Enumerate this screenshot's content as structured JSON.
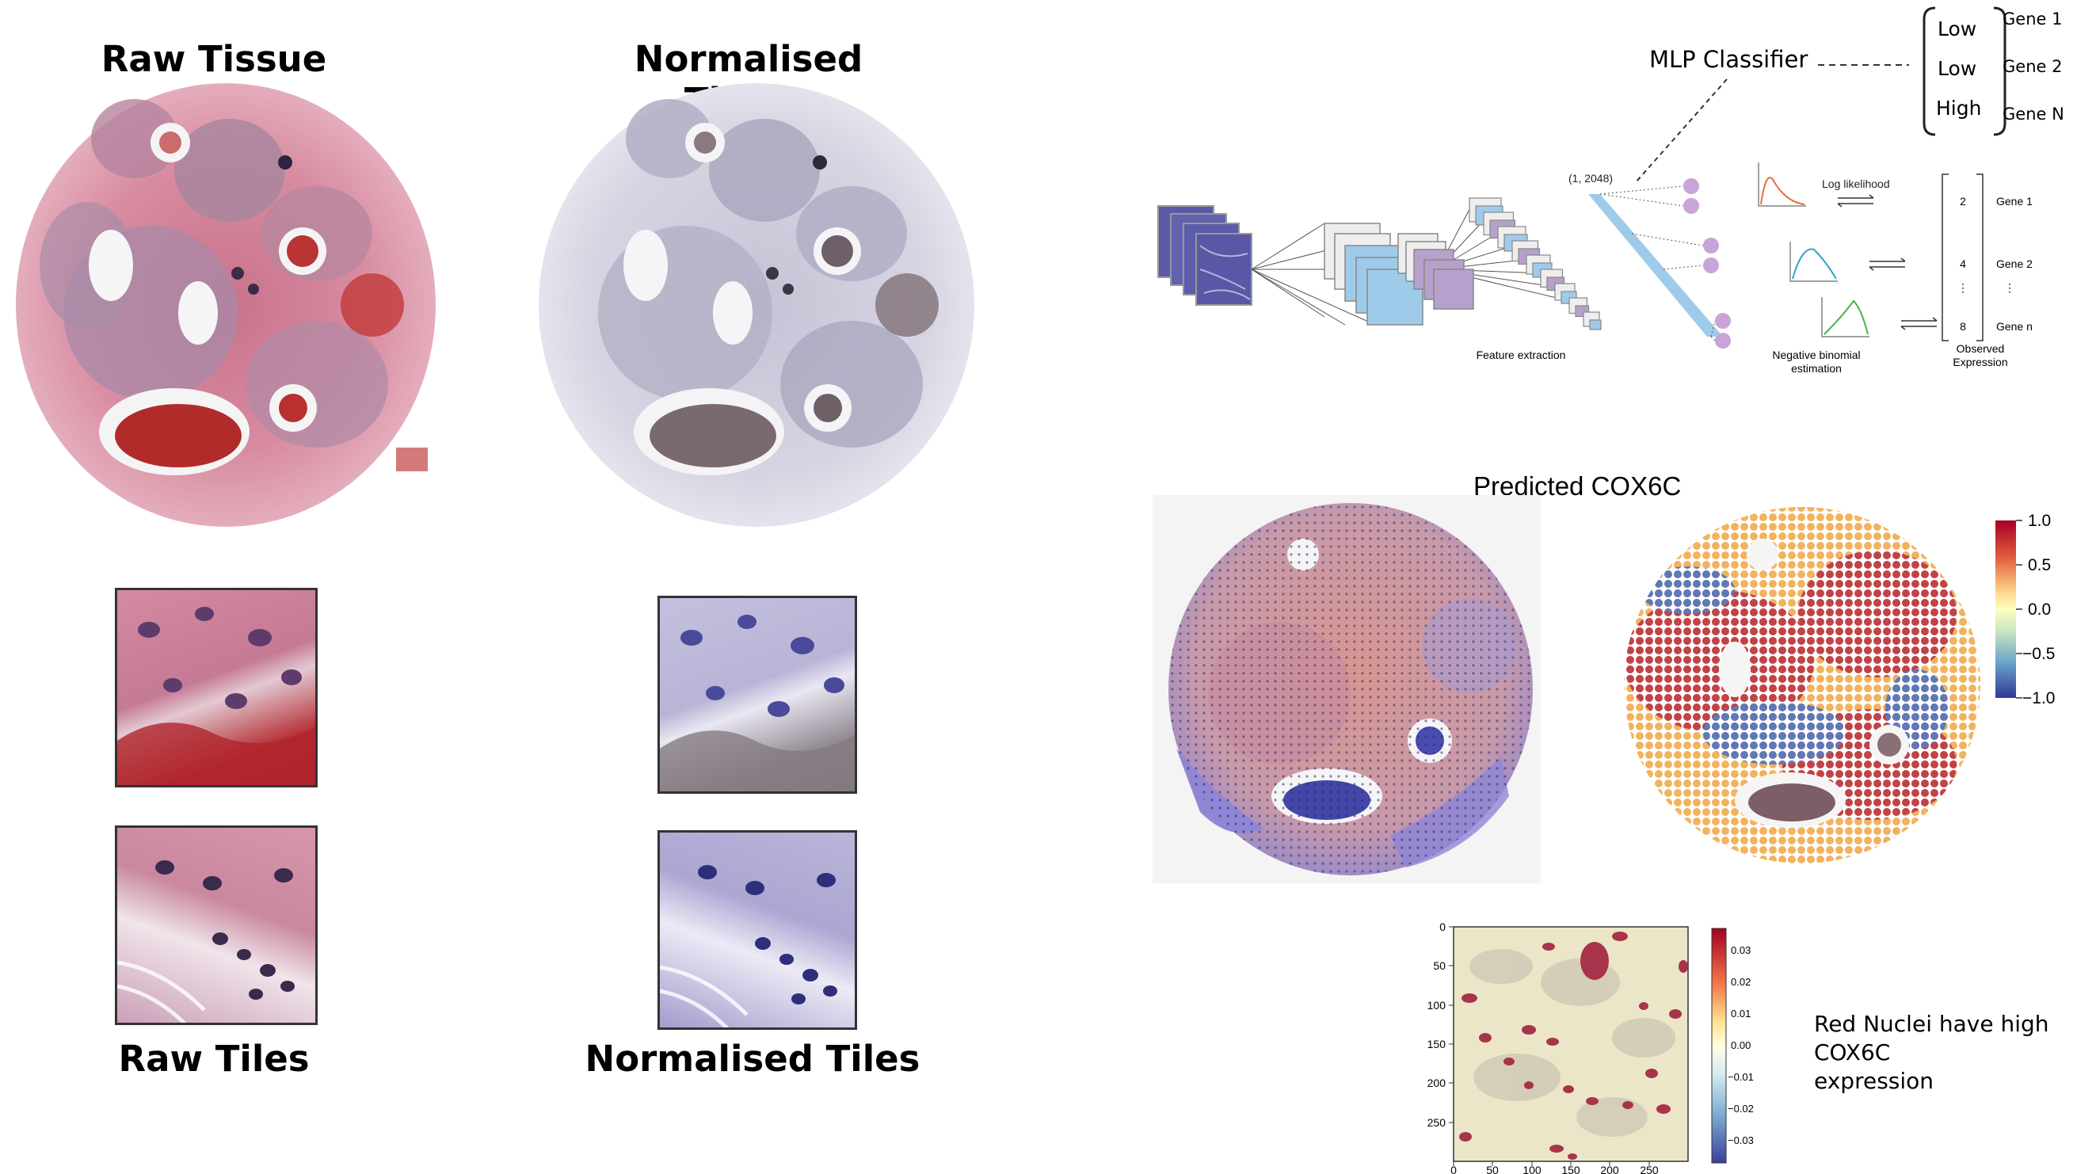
{
  "left": {
    "raw_tissue_title": "Raw Tissue",
    "normalised_tissue_title": "Normalised Tissue",
    "raw_tiles_title": "Raw Tiles",
    "normalised_tiles_title": "Normalised Tiles"
  },
  "mlp": {
    "classifier_label": "MLP Classifier",
    "levels": [
      "Low",
      "Low",
      "High"
    ],
    "genes": [
      "Gene 1",
      "Gene 2",
      "Gene N"
    ]
  },
  "network": {
    "shape_label": "(1, 2048)",
    "feature_extraction": "Feature extraction",
    "negative_binomial_1": "Negative binomial",
    "negative_binomial_2": "estimation",
    "log_likelihood": "Log likelihood",
    "observed_1": "Observed",
    "observed_2": "Expression",
    "counts": [
      "2",
      "4",
      "8"
    ],
    "count_genes": [
      "Gene 1",
      "Gene 2",
      "Gene n"
    ],
    "vdots": "⋮"
  },
  "prediction": {
    "title": "Predicted COX6C",
    "colorbar_ticks": [
      "1.0",
      "0.5",
      "0.0",
      "−0.5",
      "−1.0"
    ]
  },
  "heatmap": {
    "y_ticks": [
      "0",
      "50",
      "100",
      "150",
      "200",
      "250"
    ],
    "x_ticks": [
      "0",
      "50",
      "100",
      "150",
      "200",
      "250"
    ],
    "colorbar_ticks": [
      "0.03",
      "0.02",
      "0.01",
      "0.00",
      "−0.01",
      "−0.02",
      "−0.03"
    ],
    "caption_line1": "Red Nuclei have high COX6C",
    "caption_line2": "expression"
  },
  "colors": {
    "he_pink": "#d98a9e",
    "normalised_grey": "#b8b4c8",
    "network_blue": "#9fcbea",
    "network_purple": "#b7a0cc"
  }
}
